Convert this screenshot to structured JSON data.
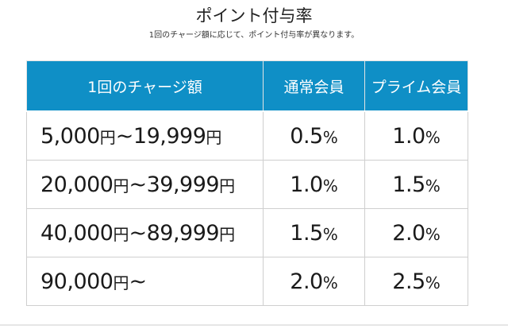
{
  "header": {
    "title": "ポイント付与率",
    "subtitle": "1回のチャージ額に応じて、ポイント付与率が異なります。"
  },
  "table": {
    "columns": [
      "1回のチャージ額",
      "通常会員",
      "プライム会員"
    ],
    "rows": [
      {
        "range_from": "5,000",
        "range_to": "19,999",
        "normal": "0.5",
        "prime": "1.0"
      },
      {
        "range_from": "20,000",
        "range_to": "39,999",
        "normal": "1.0",
        "prime": "1.5"
      },
      {
        "range_from": "40,000",
        "range_to": "89,999",
        "normal": "1.5",
        "prime": "2.0"
      },
      {
        "range_from": "90,000",
        "range_to": "",
        "normal": "2.0",
        "prime": "2.5"
      }
    ],
    "yen_label": "円",
    "range_separator": "~",
    "percent_label": "%"
  },
  "colors": {
    "header_bg": "#0f8fc6",
    "header_text": "#ffffff",
    "border": "#cfcfcf"
  }
}
